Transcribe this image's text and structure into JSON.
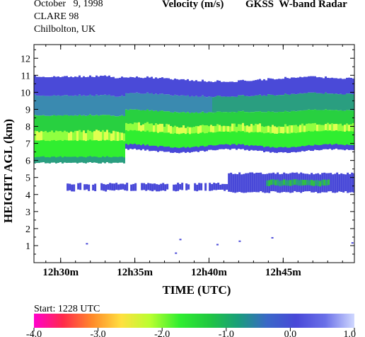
{
  "header": {
    "date": "October   9, 1998",
    "campaign": "CLARE 98",
    "site": "Chilbolton, UK",
    "quantity": "Velocity (m/s)",
    "instrument": "GKSS  W-band Radar"
  },
  "footer": {
    "start": "Start: 1228 UTC"
  },
  "chart_data": {
    "type": "heatmap",
    "xlabel": "TIME (UTC)",
    "ylabel": "HEIGHT AGL (km)",
    "x_ticks": [
      "12h30m",
      "12h35m",
      "12h40m",
      "12h45m"
    ],
    "x_tick_minutes": [
      30,
      35,
      40,
      45
    ],
    "xlim_minutes": [
      28.2,
      49.8
    ],
    "y_ticks": [
      1,
      2,
      3,
      4,
      5,
      6,
      7,
      8,
      9,
      10,
      11,
      12
    ],
    "ylim": [
      0,
      12.8
    ],
    "colorbar": {
      "range": [
        -4.0,
        1.0
      ],
      "tick_labels": [
        "-4.0",
        "-3.0",
        "-2.0",
        "-1.0",
        "0.0",
        "1.0"
      ],
      "tick_values": [
        -4,
        -3,
        -2,
        -1,
        0,
        1
      ],
      "colors": [
        "#ff00cc",
        "#ff2a4a",
        "#ff8a2a",
        "#ffe040",
        "#b8ff30",
        "#30ee30",
        "#20c840",
        "#1a9e7a",
        "#3a68c8",
        "#4848d8",
        "#6a70e8",
        "#d0d8ff"
      ]
    },
    "layers": [
      {
        "name": "upper cloud",
        "top_km": 11.0,
        "base_km": 5.9,
        "x_start_min": 28.2,
        "x_end_min": 49.8
      },
      {
        "name": "lower cloud",
        "top_km": 5.3,
        "base_km": 4.2,
        "x_start_min": 30.4,
        "x_end_min": 49.8
      }
    ]
  }
}
